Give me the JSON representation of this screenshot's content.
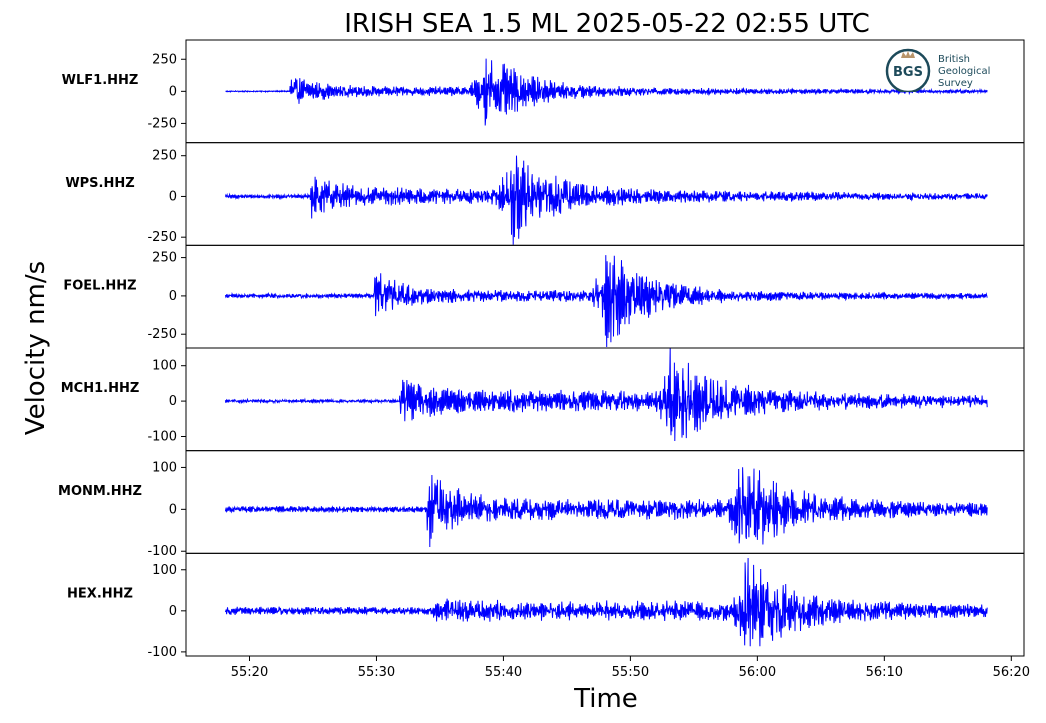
{
  "chart_data": {
    "type": "line",
    "title": "IRISH SEA 1.5 ML   2025-05-22 02:55 UTC",
    "xlabel": "Time",
    "ylabel": "Velocity nm/s",
    "x_range_seconds": [
      15,
      81
    ],
    "x_ticks": [
      {
        "label": "55:20",
        "sec": 20
      },
      {
        "label": "55:30",
        "sec": 30
      },
      {
        "label": "55:40",
        "sec": 40
      },
      {
        "label": "55:50",
        "sec": 50
      },
      {
        "label": "56:00",
        "sec": 60
      },
      {
        "label": "56:10",
        "sec": 70
      },
      {
        "label": "56:20",
        "sec": 80
      }
    ],
    "line_color": "#0000ff",
    "grid": false,
    "traces": [
      {
        "name": "WLF1.HHZ",
        "ylim": [
          -400,
          400
        ],
        "yticks": [
          {
            "v": 250,
            "label": "250"
          },
          {
            "v": 0,
            "label": "0"
          },
          {
            "v": -250,
            "label": "-250"
          }
        ],
        "start_sec": 18.1,
        "end_sec": 78.1,
        "p_arrival_sec": 23.2,
        "s_arrival_sec": 38.5,
        "p_amp": 110,
        "s_amp": 280,
        "coda_amp": 30,
        "noise_amp": 4
      },
      {
        "name": "WPS.HHZ",
        "ylim": [
          -300,
          330
        ],
        "yticks": [
          {
            "v": 250,
            "label": "250"
          },
          {
            "v": 0,
            "label": "0"
          },
          {
            "v": -250,
            "label": "-250"
          }
        ],
        "start_sec": 18.1,
        "end_sec": 78.1,
        "p_arrival_sec": 24.8,
        "s_arrival_sec": 40.5,
        "p_amp": 120,
        "s_amp": 260,
        "coda_amp": 40,
        "noise_amp": 10
      },
      {
        "name": "FOEL.HHZ",
        "ylim": [
          -340,
          330
        ],
        "yticks": [
          {
            "v": 250,
            "label": "250"
          },
          {
            "v": 0,
            "label": "0"
          },
          {
            "v": -250,
            "label": "-250"
          }
        ],
        "start_sec": 18.1,
        "end_sec": 78.1,
        "p_arrival_sec": 29.8,
        "s_arrival_sec": 48.0,
        "p_amp": 140,
        "s_amp": 300,
        "coda_amp": 30,
        "noise_amp": 12
      },
      {
        "name": "MCH1.HHZ",
        "ylim": [
          -140,
          150
        ],
        "yticks": [
          {
            "v": 100,
            "label": "100"
          },
          {
            "v": 0,
            "label": "0"
          },
          {
            "v": -100,
            "label": "-100"
          }
        ],
        "start_sec": 18.1,
        "end_sec": 78.1,
        "p_arrival_sec": 31.8,
        "s_arrival_sec": 53.0,
        "p_amp": 60,
        "s_amp": 130,
        "coda_amp": 25,
        "noise_amp": 4
      },
      {
        "name": "MONM.HHZ",
        "ylim": [
          -105,
          140
        ],
        "yticks": [
          {
            "v": 100,
            "label": "100"
          },
          {
            "v": 0,
            "label": "0"
          },
          {
            "v": -100,
            "label": "-100"
          }
        ],
        "start_sec": 18.1,
        "end_sec": 78.1,
        "p_arrival_sec": 34.0,
        "s_arrival_sec": 58.5,
        "p_amp": 80,
        "s_amp": 115,
        "coda_amp": 20,
        "noise_amp": 6
      },
      {
        "name": "HEX.HHZ",
        "ylim": [
          -110,
          140
        ],
        "yticks": [
          {
            "v": 100,
            "label": "100"
          },
          {
            "v": 0,
            "label": "0"
          },
          {
            "v": -100,
            "label": "-100"
          }
        ],
        "start_sec": 18.1,
        "end_sec": 78.1,
        "p_arrival_sec": 34.5,
        "s_arrival_sec": 59.0,
        "p_amp": 25,
        "s_amp": 120,
        "coda_amp": 20,
        "noise_amp": 8
      }
    ]
  },
  "logo": {
    "mark_text": "BGS",
    "line1": "British",
    "line2": "Geological",
    "line3": "Survey",
    "ring_color": "#1d4a5a",
    "text_color": "#1d4a5a",
    "crown_color": "#b8946a"
  }
}
